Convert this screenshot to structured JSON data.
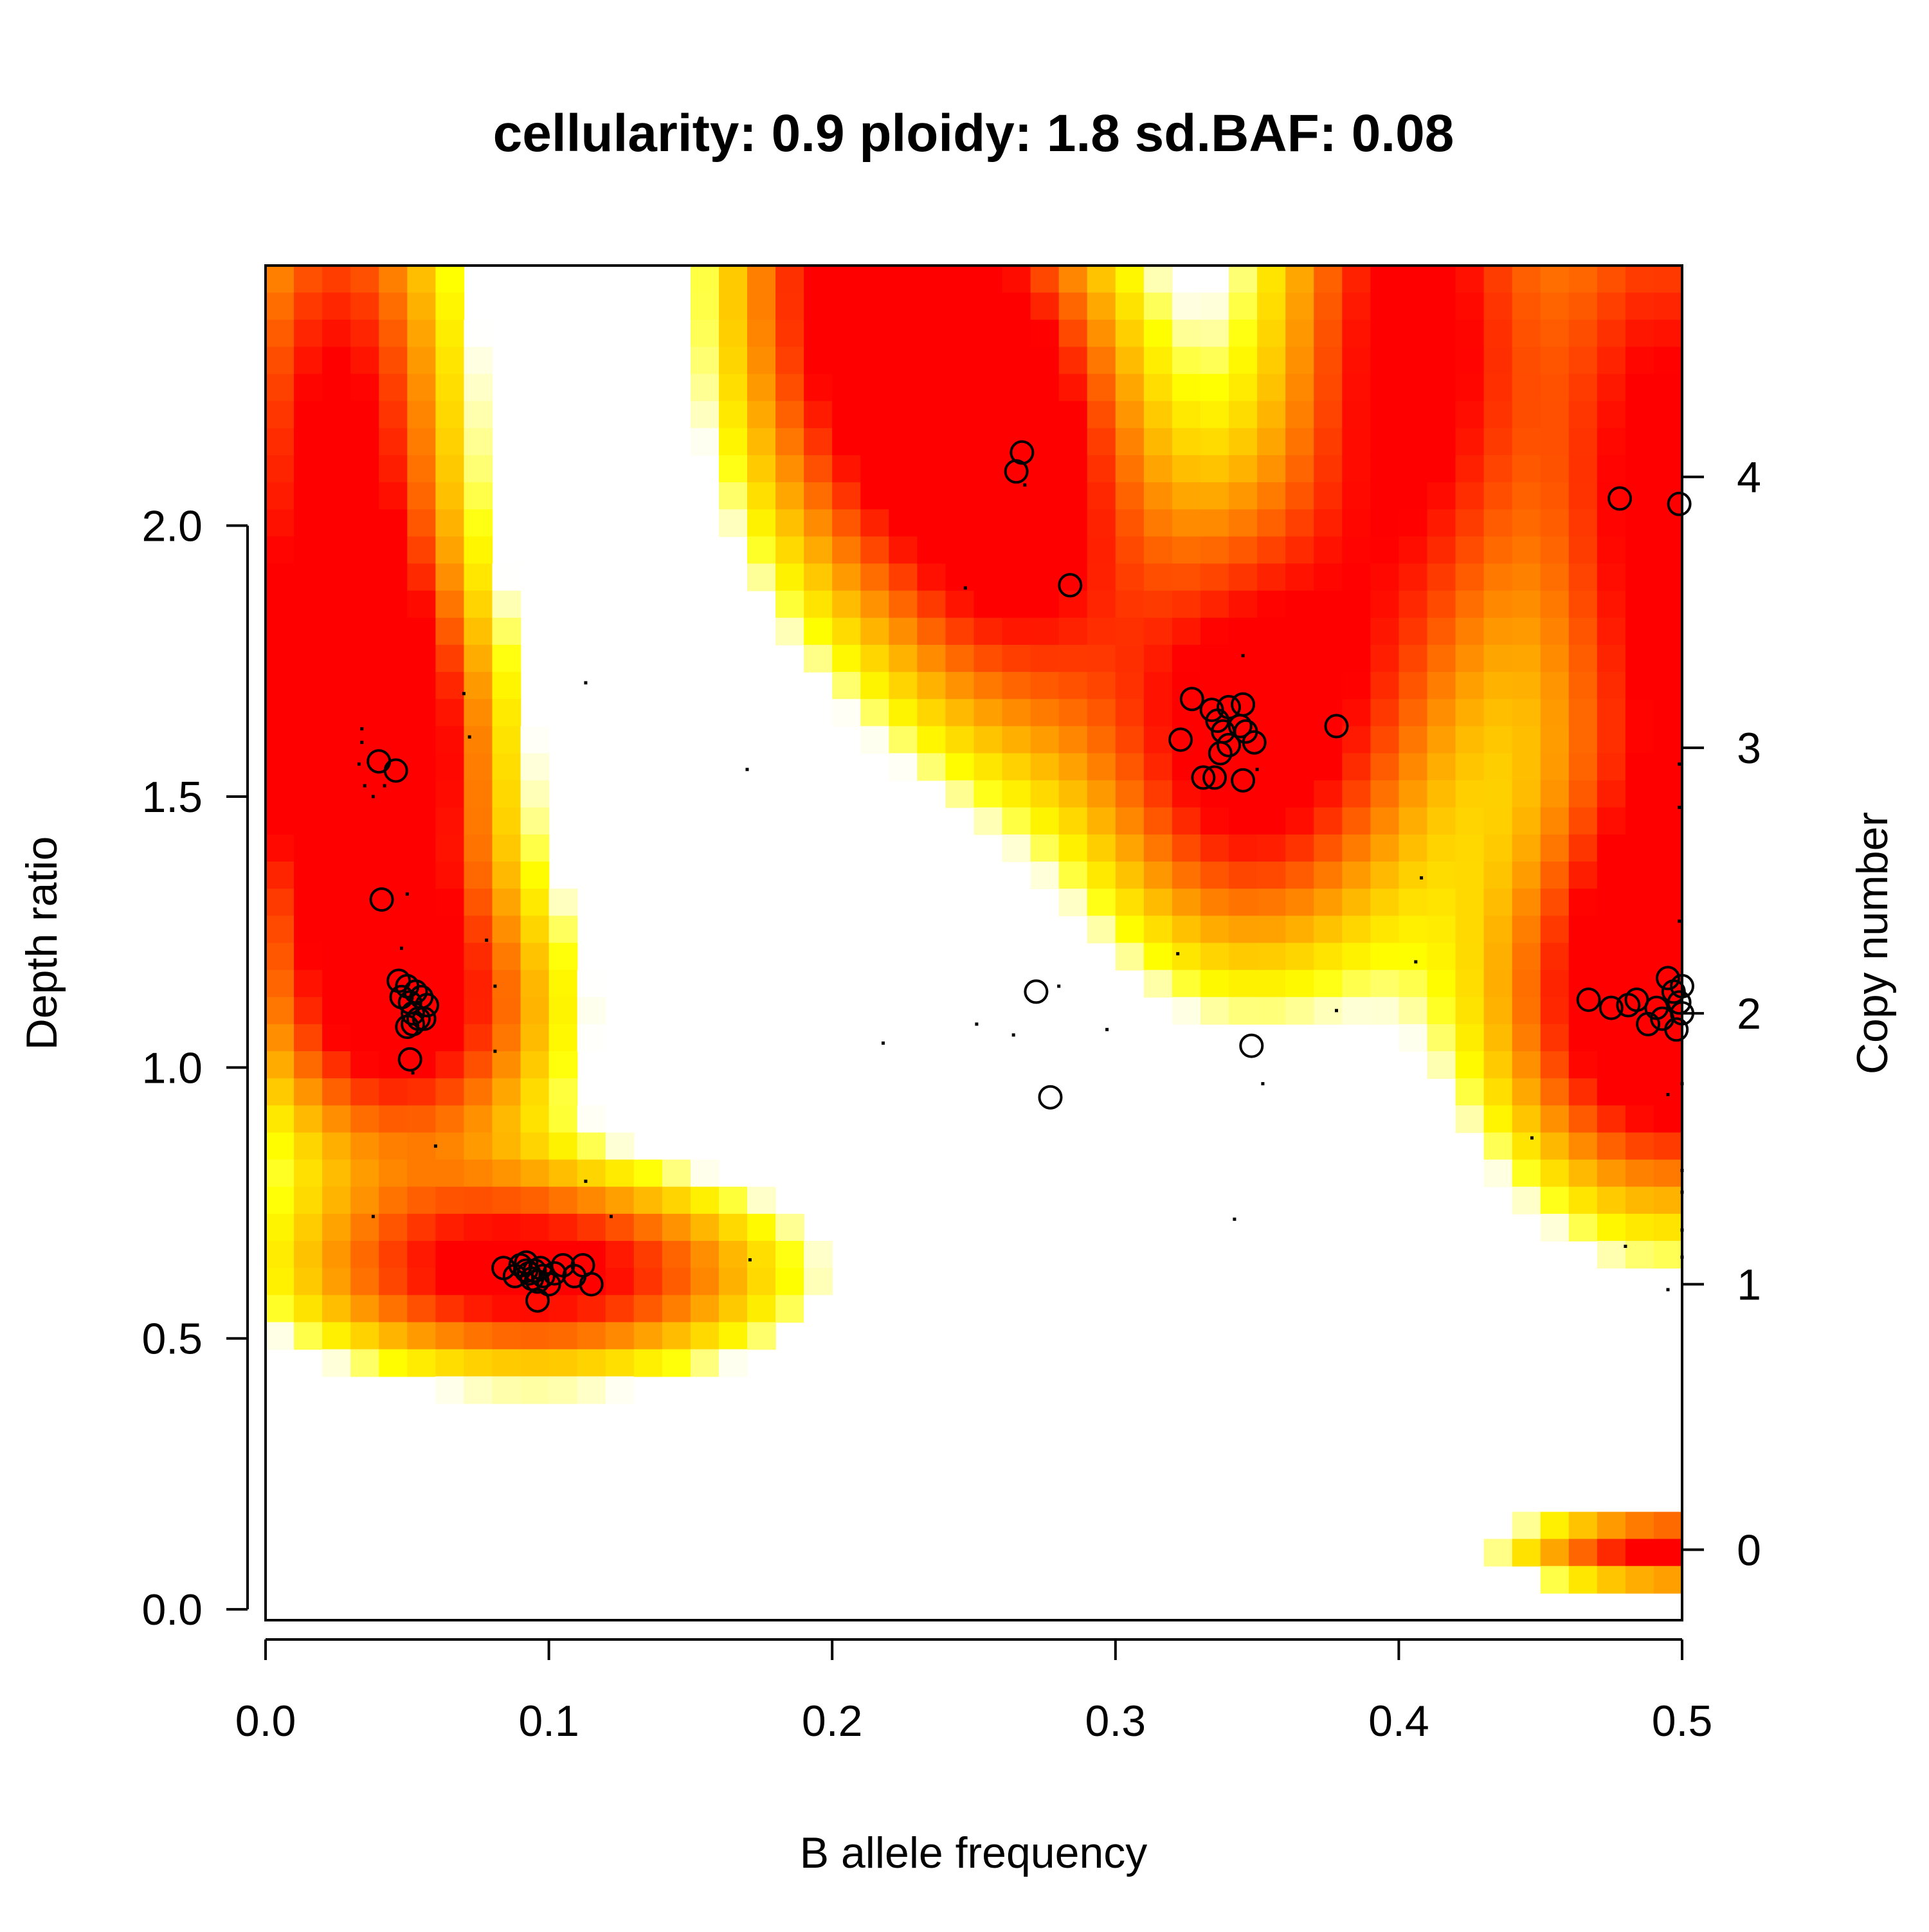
{
  "chart_data": {
    "type": "heatmap",
    "title": "cellularity: 0.9 ploidy: 1.8 sd.BAF: 0.08",
    "xlabel": "B allele frequency",
    "ylabel": "Depth ratio",
    "y2label": "Copy number",
    "xlim": [
      0.0,
      0.5
    ],
    "ylim": [
      -0.02,
      2.48
    ],
    "x_ticks": [
      0.0,
      0.1,
      0.2,
      0.3,
      0.4,
      0.5
    ],
    "x_tick_labels": [
      "0.0",
      "0.1",
      "0.2",
      "0.3",
      "0.4",
      "0.5"
    ],
    "y_ticks": [
      0.0,
      0.5,
      1.0,
      1.5,
      2.0
    ],
    "y_tick_labels": [
      "0.0",
      "0.5",
      "1.0",
      "1.5",
      "2.0"
    ],
    "copy_number_ticks": [
      {
        "label": "0",
        "depth_ratio": 0.11
      },
      {
        "label": "1",
        "depth_ratio": 0.6
      },
      {
        "label": "2",
        "depth_ratio": 1.1
      },
      {
        "label": "3",
        "depth_ratio": 1.59
      },
      {
        "label": "4",
        "depth_ratio": 2.09
      }
    ],
    "colors": {
      "high": "#ff0000",
      "mid": "#ff8000",
      "low": "#ffff00",
      "floor": "#ffffff"
    },
    "density_peaks": [
      {
        "baf": 0.025,
        "ratio": 2.1,
        "sx": 0.03,
        "sy": 0.5,
        "w": 1.0
      },
      {
        "baf": 0.21,
        "ratio": 2.45,
        "sx": 0.035,
        "sy": 0.4,
        "w": 1.0
      },
      {
        "baf": 0.265,
        "ratio": 2.1,
        "sx": 0.033,
        "sy": 0.35,
        "w": 1.0
      },
      {
        "baf": 0.405,
        "ratio": 2.35,
        "sx": 0.035,
        "sy": 0.5,
        "w": 1.0
      },
      {
        "baf": 0.495,
        "ratio": 2.0,
        "sx": 0.03,
        "sy": 0.6,
        "w": 1.0
      },
      {
        "baf": 0.035,
        "ratio": 1.58,
        "sx": 0.032,
        "sy": 0.22,
        "w": 0.95
      },
      {
        "baf": 0.345,
        "ratio": 1.6,
        "sx": 0.038,
        "sy": 0.3,
        "w": 1.0
      },
      {
        "baf": 0.495,
        "ratio": 1.1,
        "sx": 0.045,
        "sy": 0.25,
        "w": 1.0
      },
      {
        "baf": 0.05,
        "ratio": 1.1,
        "sx": 0.038,
        "sy": 0.2,
        "w": 0.95
      },
      {
        "baf": 0.095,
        "ratio": 0.62,
        "sx": 0.06,
        "sy": 0.13,
        "w": 1.0
      },
      {
        "baf": 0.5,
        "ratio": 0.11,
        "sx": 0.04,
        "sy": 0.05,
        "w": 1.0
      }
    ],
    "segments_large": [
      {
        "baf": 0.04,
        "ratio": 1.565
      },
      {
        "baf": 0.046,
        "ratio": 1.548
      },
      {
        "baf": 0.041,
        "ratio": 1.31
      },
      {
        "baf": 0.047,
        "ratio": 1.16
      },
      {
        "baf": 0.05,
        "ratio": 1.15
      },
      {
        "baf": 0.053,
        "ratio": 1.14
      },
      {
        "baf": 0.048,
        "ratio": 1.13
      },
      {
        "baf": 0.055,
        "ratio": 1.13
      },
      {
        "baf": 0.051,
        "ratio": 1.12
      },
      {
        "baf": 0.057,
        "ratio": 1.115
      },
      {
        "baf": 0.052,
        "ratio": 1.1
      },
      {
        "baf": 0.054,
        "ratio": 1.09
      },
      {
        "baf": 0.05,
        "ratio": 1.075
      },
      {
        "baf": 0.056,
        "ratio": 1.09
      },
      {
        "baf": 0.052,
        "ratio": 1.08
      },
      {
        "baf": 0.051,
        "ratio": 1.015
      },
      {
        "baf": 0.084,
        "ratio": 0.63
      },
      {
        "baf": 0.088,
        "ratio": 0.615
      },
      {
        "baf": 0.09,
        "ratio": 0.635
      },
      {
        "baf": 0.092,
        "ratio": 0.64
      },
      {
        "baf": 0.093,
        "ratio": 0.62
      },
      {
        "baf": 0.094,
        "ratio": 0.61
      },
      {
        "baf": 0.095,
        "ratio": 0.625
      },
      {
        "baf": 0.096,
        "ratio": 0.605
      },
      {
        "baf": 0.097,
        "ratio": 0.63
      },
      {
        "baf": 0.098,
        "ratio": 0.615
      },
      {
        "baf": 0.1,
        "ratio": 0.6
      },
      {
        "baf": 0.102,
        "ratio": 0.62
      },
      {
        "baf": 0.105,
        "ratio": 0.635
      },
      {
        "baf": 0.109,
        "ratio": 0.615
      },
      {
        "baf": 0.112,
        "ratio": 0.635
      },
      {
        "baf": 0.115,
        "ratio": 0.6
      },
      {
        "baf": 0.096,
        "ratio": 0.57
      },
      {
        "baf": 0.092,
        "ratio": 0.625
      },
      {
        "baf": 0.267,
        "ratio": 2.135
      },
      {
        "baf": 0.265,
        "ratio": 2.1
      },
      {
        "baf": 0.284,
        "ratio": 1.89
      },
      {
        "baf": 0.272,
        "ratio": 1.14
      },
      {
        "baf": 0.277,
        "ratio": 0.945
      },
      {
        "baf": 0.327,
        "ratio": 1.68
      },
      {
        "baf": 0.334,
        "ratio": 1.66
      },
      {
        "baf": 0.34,
        "ratio": 1.665
      },
      {
        "baf": 0.345,
        "ratio": 1.67
      },
      {
        "baf": 0.336,
        "ratio": 1.64
      },
      {
        "baf": 0.344,
        "ratio": 1.63
      },
      {
        "baf": 0.338,
        "ratio": 1.62
      },
      {
        "baf": 0.346,
        "ratio": 1.62
      },
      {
        "baf": 0.323,
        "ratio": 1.605
      },
      {
        "baf": 0.349,
        "ratio": 1.6
      },
      {
        "baf": 0.34,
        "ratio": 1.595
      },
      {
        "baf": 0.337,
        "ratio": 1.58
      },
      {
        "baf": 0.331,
        "ratio": 1.535
      },
      {
        "baf": 0.335,
        "ratio": 1.535
      },
      {
        "baf": 0.345,
        "ratio": 1.53
      },
      {
        "baf": 0.378,
        "ratio": 1.63
      },
      {
        "baf": 0.348,
        "ratio": 1.04
      },
      {
        "baf": 0.478,
        "ratio": 2.05
      },
      {
        "baf": 0.499,
        "ratio": 2.04
      },
      {
        "baf": 0.467,
        "ratio": 1.125
      },
      {
        "baf": 0.475,
        "ratio": 1.11
      },
      {
        "baf": 0.481,
        "ratio": 1.115
      },
      {
        "baf": 0.484,
        "ratio": 1.125
      },
      {
        "baf": 0.488,
        "ratio": 1.08
      },
      {
        "baf": 0.491,
        "ratio": 1.11
      },
      {
        "baf": 0.493,
        "ratio": 1.09
      },
      {
        "baf": 0.495,
        "ratio": 1.165
      },
      {
        "baf": 0.497,
        "ratio": 1.14
      },
      {
        "baf": 0.499,
        "ratio": 1.12
      },
      {
        "baf": 0.5,
        "ratio": 1.1
      },
      {
        "baf": 0.498,
        "ratio": 1.07
      },
      {
        "baf": 0.5,
        "ratio": 1.15
      }
    ],
    "segments_small": [
      {
        "baf": 0.034,
        "ratio": 1.625
      },
      {
        "baf": 0.034,
        "ratio": 1.6
      },
      {
        "baf": 0.033,
        "ratio": 1.56
      },
      {
        "baf": 0.035,
        "ratio": 1.52
      },
      {
        "baf": 0.038,
        "ratio": 1.5
      },
      {
        "baf": 0.042,
        "ratio": 1.52
      },
      {
        "baf": 0.07,
        "ratio": 1.69
      },
      {
        "baf": 0.072,
        "ratio": 1.61
      },
      {
        "baf": 0.113,
        "ratio": 1.71
      },
      {
        "baf": 0.05,
        "ratio": 1.32
      },
      {
        "baf": 0.048,
        "ratio": 1.22
      },
      {
        "baf": 0.078,
        "ratio": 1.235
      },
      {
        "baf": 0.081,
        "ratio": 1.15
      },
      {
        "baf": 0.081,
        "ratio": 1.03
      },
      {
        "baf": 0.052,
        "ratio": 0.99
      },
      {
        "baf": 0.06,
        "ratio": 0.855
      },
      {
        "baf": 0.038,
        "ratio": 0.725
      },
      {
        "baf": 0.113,
        "ratio": 0.79
      },
      {
        "baf": 0.122,
        "ratio": 0.725
      },
      {
        "baf": 0.171,
        "ratio": 0.645
      },
      {
        "baf": 0.17,
        "ratio": 1.55
      },
      {
        "baf": 0.247,
        "ratio": 1.885
      },
      {
        "baf": 0.268,
        "ratio": 2.075
      },
      {
        "baf": 0.218,
        "ratio": 1.045
      },
      {
        "baf": 0.251,
        "ratio": 1.08
      },
      {
        "baf": 0.264,
        "ratio": 1.06
      },
      {
        "baf": 0.28,
        "ratio": 1.15
      },
      {
        "baf": 0.297,
        "ratio": 1.07
      },
      {
        "baf": 0.322,
        "ratio": 1.21
      },
      {
        "baf": 0.345,
        "ratio": 1.76
      },
      {
        "baf": 0.35,
        "ratio": 1.55
      },
      {
        "baf": 0.352,
        "ratio": 0.97
      },
      {
        "baf": 0.342,
        "ratio": 0.72
      },
      {
        "baf": 0.378,
        "ratio": 1.105
      },
      {
        "baf": 0.406,
        "ratio": 1.195
      },
      {
        "baf": 0.408,
        "ratio": 1.35
      },
      {
        "baf": 0.447,
        "ratio": 0.87
      },
      {
        "baf": 0.48,
        "ratio": 0.67
      },
      {
        "baf": 0.495,
        "ratio": 0.95
      },
      {
        "baf": 0.495,
        "ratio": 0.59
      },
      {
        "baf": 0.499,
        "ratio": 1.56
      },
      {
        "baf": 0.499,
        "ratio": 1.48
      },
      {
        "baf": 0.499,
        "ratio": 1.27
      },
      {
        "baf": 0.5,
        "ratio": 0.97
      },
      {
        "baf": 0.5,
        "ratio": 0.81
      },
      {
        "baf": 0.5,
        "ratio": 0.77
      },
      {
        "baf": 0.5,
        "ratio": 0.7
      },
      {
        "baf": 0.5,
        "ratio": 0.65
      }
    ]
  }
}
